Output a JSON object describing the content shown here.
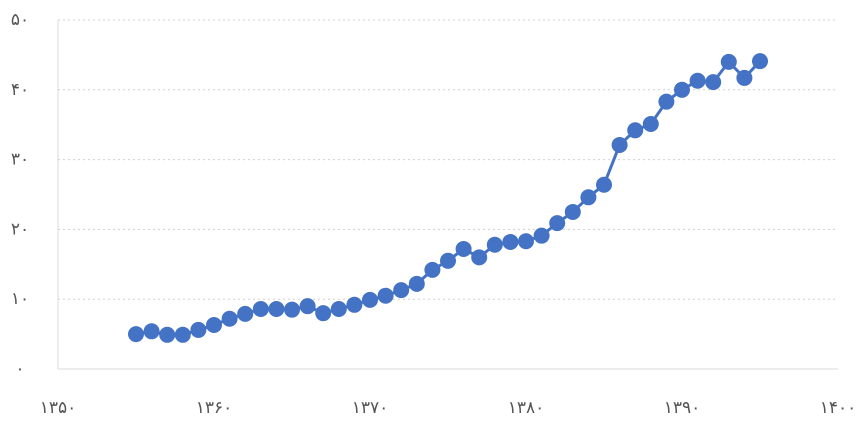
{
  "chart_data": {
    "type": "line",
    "x": [
      1355,
      1356,
      1357,
      1358,
      1359,
      1360,
      1361,
      1362,
      1363,
      1364,
      1365,
      1366,
      1367,
      1368,
      1369,
      1370,
      1371,
      1372,
      1373,
      1374,
      1375,
      1376,
      1377,
      1378,
      1379,
      1380,
      1381,
      1382,
      1383,
      1384,
      1385,
      1386,
      1387,
      1388,
      1389,
      1390,
      1391,
      1392,
      1393,
      1394,
      1395
    ],
    "values": [
      5.0,
      5.4,
      4.9,
      4.9,
      5.6,
      6.3,
      7.2,
      7.9,
      8.6,
      8.6,
      8.5,
      9.0,
      8.0,
      8.6,
      9.2,
      9.9,
      10.5,
      11.3,
      12.2,
      14.2,
      15.5,
      17.2,
      16.0,
      17.8,
      18.2,
      18.3,
      19.1,
      20.9,
      22.5,
      24.6,
      26.4,
      32.1,
      34.2,
      35.1,
      38.3,
      40.0,
      41.3,
      41.1,
      44.0,
      41.7,
      44.1
    ],
    "color": "#4472c4",
    "xlim": [
      1350,
      1400
    ],
    "xticks": [
      {
        "value": 1350,
        "label": "۱۳۵۰"
      },
      {
        "value": 1360,
        "label": "۱۳۶۰"
      },
      {
        "value": 1370,
        "label": "۱۳۷۰"
      },
      {
        "value": 1380,
        "label": "۱۳۸۰"
      },
      {
        "value": 1390,
        "label": "۱۳۹۰"
      },
      {
        "value": 1400,
        "label": "۱۴۰۰"
      }
    ],
    "ylim": [
      0,
      50
    ],
    "yticks": [
      {
        "value": 0,
        "label": "۰"
      },
      {
        "value": 10,
        "label": "۱۰"
      },
      {
        "value": 20,
        "label": "۲۰"
      },
      {
        "value": 30,
        "label": "۳۰"
      },
      {
        "value": 40,
        "label": "۴۰"
      },
      {
        "value": 50,
        "label": "۵۰"
      }
    ],
    "grid": true
  }
}
